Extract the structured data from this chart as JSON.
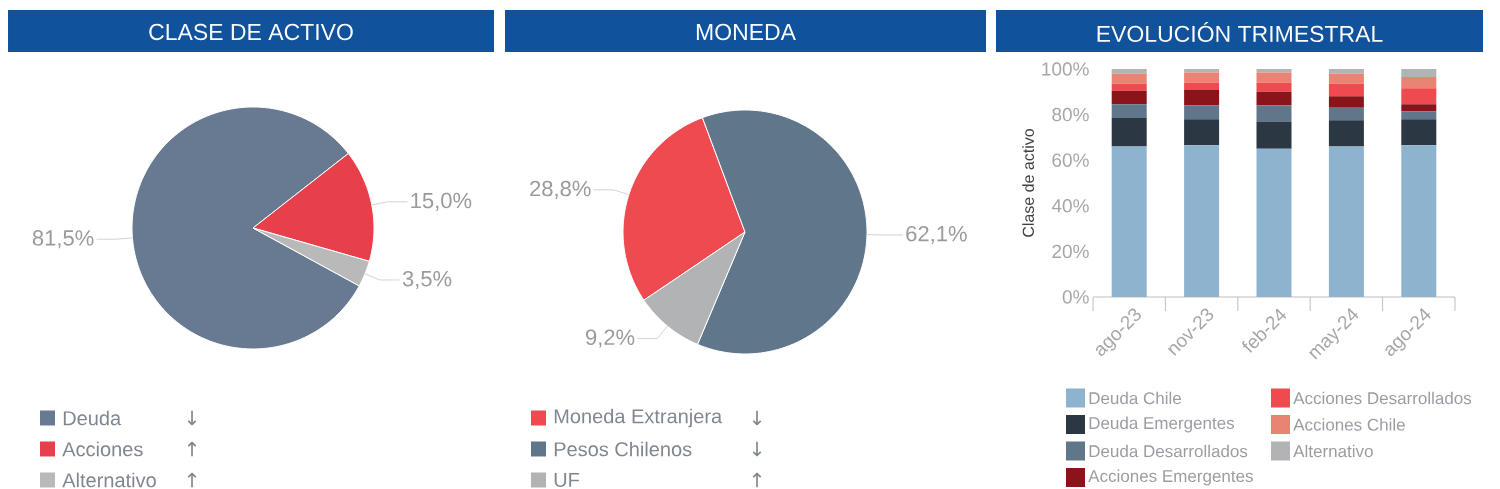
{
  "chart_data": [
    {
      "type": "pie",
      "title": "CLASE DE ACTIVO",
      "categories": [
        "Deuda",
        "Acciones",
        "Alternativo"
      ],
      "values": [
        81.5,
        15.0,
        3.5
      ],
      "colors": [
        "#687a91",
        "#e8404a",
        "#b9b9b9"
      ],
      "value_labels": [
        "81,5%",
        "15,0%",
        "3,5%"
      ],
      "legend": "bottom",
      "annotations": [
        "↓",
        "↑",
        "↑"
      ]
    },
    {
      "type": "pie",
      "title": "MONEDA",
      "categories": [
        "Moneda Extranjera",
        "Pesos Chilenos",
        "UF"
      ],
      "values": [
        28.8,
        62.1,
        9.2
      ],
      "colors": [
        "#ef4a4f",
        "#5f768b",
        "#b1b3b4"
      ],
      "value_labels": [
        "28,8%",
        "62,1%",
        "9,2%"
      ],
      "legend": "bottom",
      "annotations": [
        "↓",
        "↓",
        "↑"
      ]
    },
    {
      "type": "bar",
      "title": "EVOLUCIÓN TRIMESTRAL",
      "ylabel": "Clase de activo",
      "categories": [
        "ago-23",
        "nov-23",
        "feb-24",
        "may-24",
        "ago-24"
      ],
      "stacked": true,
      "ylim": [
        0,
        100
      ],
      "yticks": [
        {
          "value": 0,
          "label": "0%"
        },
        {
          "value": 20,
          "label": "20%"
        },
        {
          "value": 40,
          "label": "40%"
        },
        {
          "value": 60,
          "label": "60%"
        },
        {
          "value": 80,
          "label": "80%"
        },
        {
          "value": 100,
          "label": "100%"
        }
      ],
      "legend": "bottom",
      "series": [
        {
          "name": "Deuda Chile",
          "color": "#8db3cf",
          "values": [
            66,
            66.5,
            65,
            66,
            66.5
          ]
        },
        {
          "name": "Deuda Emergentes",
          "color": "#2b3742",
          "values": [
            12.5,
            11.5,
            12,
            11.5,
            11.5
          ]
        },
        {
          "name": "Deuda Desarrollados",
          "color": "#5f768b",
          "values": [
            6,
            6,
            7,
            5.5,
            3.5
          ]
        },
        {
          "name": "Acciones Emergentes",
          "color": "#8b141a",
          "values": [
            6,
            7,
            6,
            5,
            3
          ]
        },
        {
          "name": "Acciones Desarrollados",
          "color": "#ef4a4f",
          "values": [
            3,
            3,
            4,
            5.5,
            7
          ]
        },
        {
          "name": "Acciones Chile",
          "color": "#e98374",
          "values": [
            4.5,
            4.5,
            4.5,
            4.5,
            5
          ]
        },
        {
          "name": "Alternativo",
          "color": "#b1b3b4",
          "values": [
            2,
            1.5,
            1.5,
            2,
            3.5
          ]
        }
      ]
    }
  ]
}
